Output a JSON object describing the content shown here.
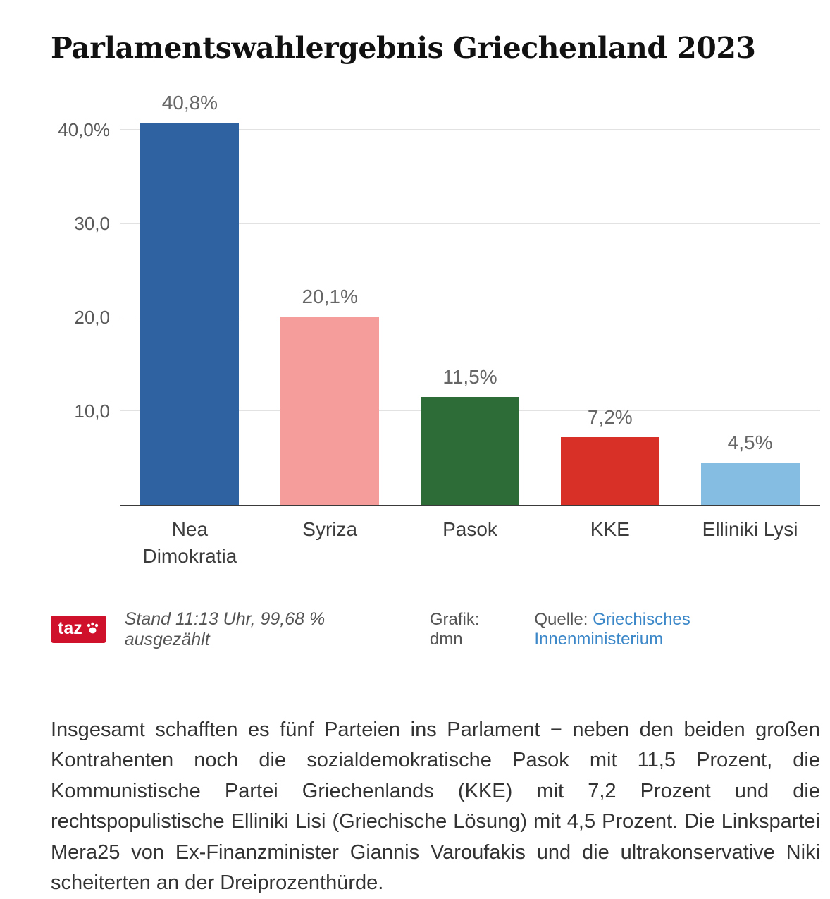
{
  "title": "Parlamentswahlergebnis Griechenland 2023",
  "chart_data": {
    "type": "bar",
    "title": "Parlamentswahlergebnis Griechenland 2023",
    "categories": [
      "Nea Dimokratia",
      "Syriza",
      "Pasok",
      "KKE",
      "Elliniki Lysi"
    ],
    "values": [
      40.8,
      20.1,
      11.5,
      7.2,
      4.5
    ],
    "value_labels": [
      "40,8%",
      "20,1%",
      "11,5%",
      "7,2%",
      "4,5%"
    ],
    "bar_colors": [
      "#2e62a1",
      "#f49d9b",
      "#2d6b37",
      "#d82f27",
      "#85bce2"
    ],
    "ytick_values": [
      40,
      30,
      20,
      10
    ],
    "ytick_labels": [
      "40,0%",
      "30,0",
      "20,0",
      "10,0"
    ],
    "ylim": [
      0,
      41
    ],
    "grid": true,
    "legend_position": "none",
    "xlabel": "",
    "ylabel": ""
  },
  "credits": {
    "logo_text": "taz",
    "status_text": "Stand 11:13 Uhr, 99,68 % ausgezählt",
    "credit_text": "Grafik: dmn",
    "source_label": "Quelle:",
    "source_link_text": "Griechisches Innenministerium"
  },
  "article": {
    "paragraph": "Insgesamt schafften es fünf Parteien ins Parlament − neben den beiden großen Kontrahenten noch die sozialdemokratische Pasok mit 11,5 Prozent, die Kommunistische Partei Griechenlands (KKE) mit 7,2 Prozent und die rechtspopulistische Elliniki Lisi (Griechische Lösung) mit 4,5 Prozent. Die Linkspartei Mera25 von Ex-Finanzminister Giannis Varoufakis und die ultrakonservative Niki scheiterten an der Dreiprozenthürde."
  },
  "colors": {
    "taz_red": "#d0112b",
    "link_blue": "#3b87c8",
    "axis": "#3a3a3a",
    "gridline": "#e2e2e2"
  }
}
